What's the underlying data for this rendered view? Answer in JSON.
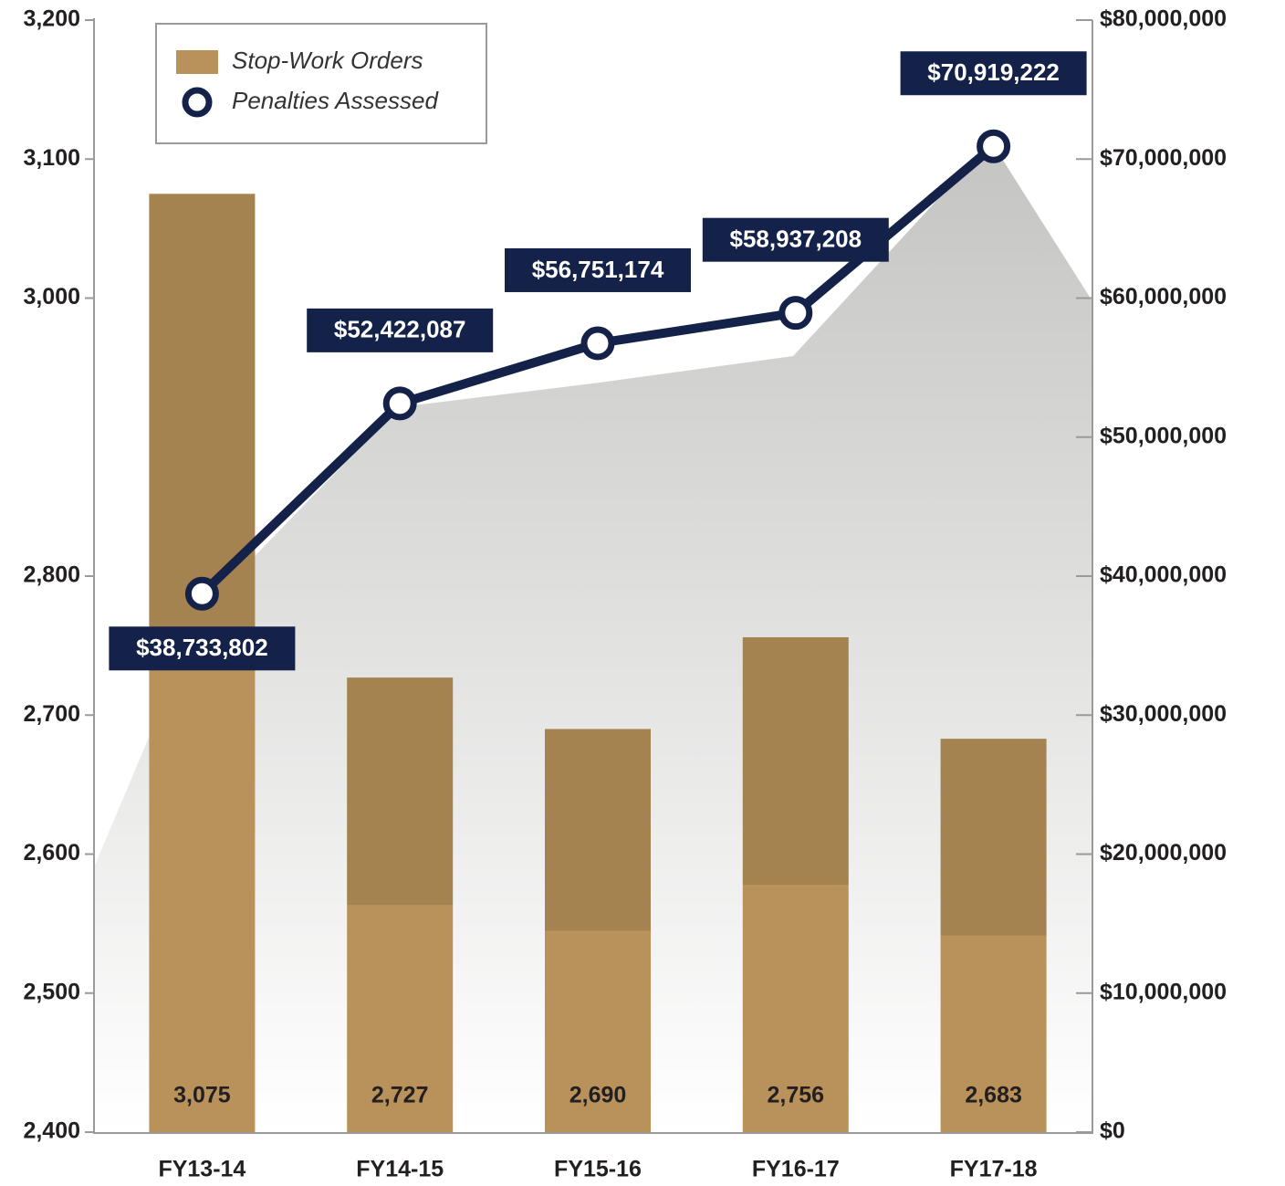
{
  "chart_data": {
    "type": "bar",
    "categories": [
      "FY13-14",
      "FY14-15",
      "FY15-16",
      "FY16-17",
      "FY17-18"
    ],
    "series": [
      {
        "name": "Stop-Work Orders",
        "type": "bar",
        "color": "#b8925a",
        "values": [
          3075,
          2727,
          2690,
          2756,
          2683
        ],
        "value_labels": [
          "3,075",
          "2,727",
          "2,690",
          "2,756",
          "2,683"
        ]
      },
      {
        "name": "Penalties Assessed",
        "type": "line",
        "axis": "y2",
        "color": "#14224a",
        "values": [
          38733802,
          52422087,
          56751174,
          58937208,
          70919222
        ],
        "value_labels": [
          "$38,733,802",
          "$52,422,087",
          "$56,751,174",
          "$58,937,208",
          "$70,919,222"
        ]
      }
    ],
    "ylim": [
      2400,
      3200
    ],
    "yticks": [
      {
        "value": 3200,
        "label": "3,200"
      },
      {
        "value": 3100,
        "label": "3,100"
      },
      {
        "value": 3000,
        "label": "3,000"
      },
      {
        "value": 2800,
        "label": "2,800"
      },
      {
        "value": 2700,
        "label": "2,700"
      },
      {
        "value": 2600,
        "label": "2,600"
      },
      {
        "value": 2500,
        "label": "2,500"
      },
      {
        "value": 2400,
        "label": "2,400"
      }
    ],
    "y2lim": [
      0,
      80000000
    ],
    "y2ticks": [
      {
        "value": 80000000,
        "label": "$80,000,000"
      },
      {
        "value": 70000000,
        "label": "$70,000,000"
      },
      {
        "value": 60000000,
        "label": "$60,000,000"
      },
      {
        "value": 50000000,
        "label": "$50,000,000"
      },
      {
        "value": 40000000,
        "label": "$40,000,000"
      },
      {
        "value": 30000000,
        "label": "$30,000,000"
      },
      {
        "value": 20000000,
        "label": "$20,000,000"
      },
      {
        "value": 10000000,
        "label": "$10,000,000"
      },
      {
        "value": 0,
        "label": "$0"
      }
    ],
    "legend": "upper left"
  }
}
